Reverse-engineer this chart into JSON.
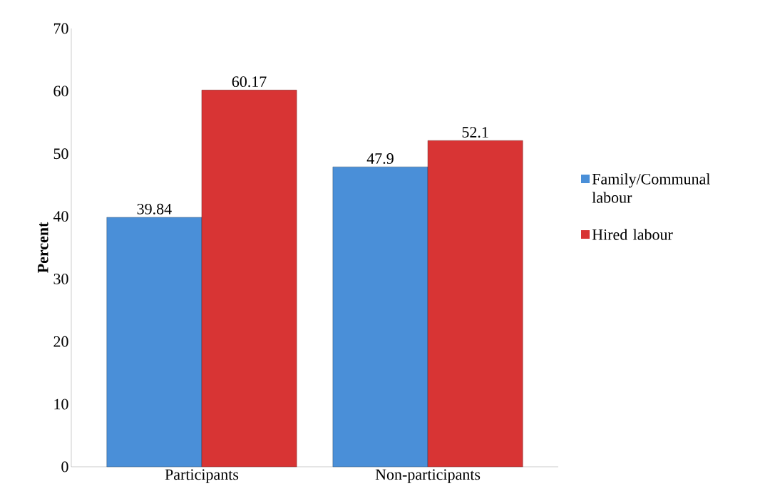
{
  "chart_data": {
    "type": "bar",
    "ylabel": "Percent",
    "categories": [
      "Participants",
      "Non-participants"
    ],
    "series": [
      {
        "name": "Family/Communal labour",
        "color": "#4a8fd8",
        "values": [
          39.84,
          47.9
        ]
      },
      {
        "name": "Hired labour",
        "color": "#d83434",
        "values": [
          60.17,
          52.1
        ]
      }
    ],
    "ylim": [
      0,
      70
    ],
    "yticks": [
      0,
      10,
      20,
      30,
      40,
      50,
      60,
      70
    ],
    "grid": false,
    "legend": "right",
    "data_labels": true
  }
}
